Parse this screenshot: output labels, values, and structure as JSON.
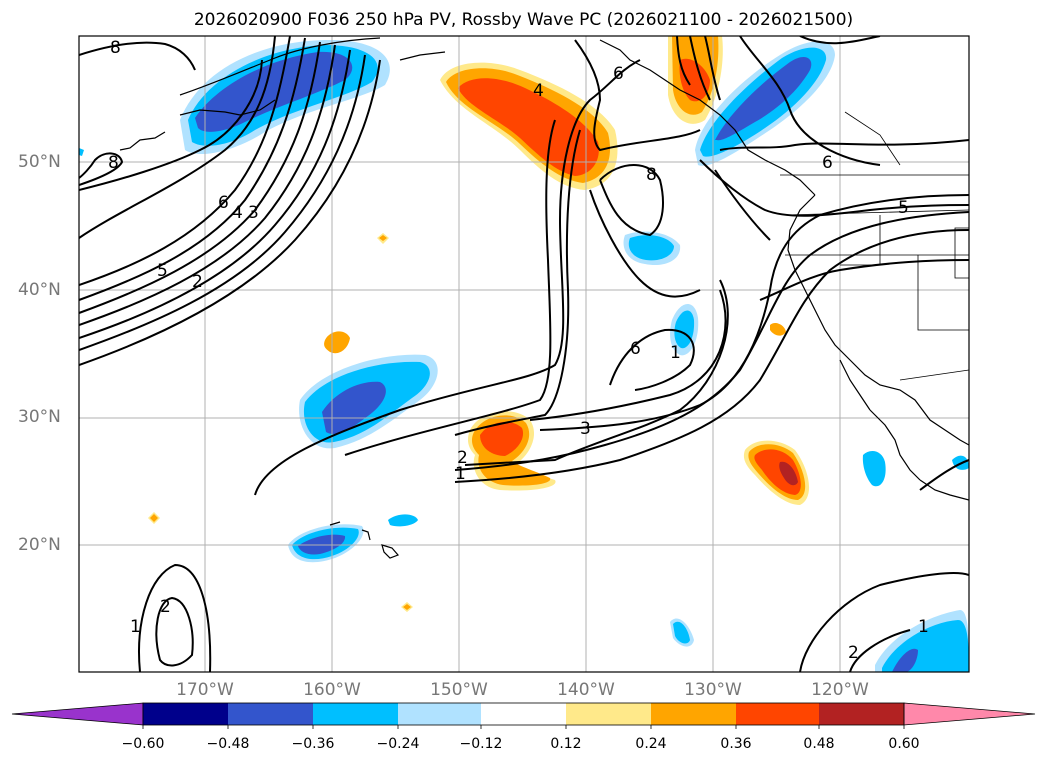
{
  "title": "2026020900 F036 250 hPa PV, Rossby Wave PC (2026021100 - 2026021500)",
  "lat_labels": [
    "50°N",
    "40°N",
    "30°N",
    "20°N"
  ],
  "lon_labels": [
    "170°W",
    "160°W",
    "150°W",
    "140°W",
    "130°W",
    "120°W"
  ],
  "colorbar": {
    "ticks": [
      "−0.60",
      "−0.48",
      "−0.36",
      "−0.24",
      "−0.12",
      "0.12",
      "0.24",
      "0.36",
      "0.48",
      "0.60"
    ],
    "colors": [
      "#9933cc",
      "#00008b",
      "#3355cc",
      "#00bfff",
      "#b0e2ff",
      "#ffffff",
      "#ffe98a",
      "#ffa500",
      "#ff4500",
      "#b22222",
      "#ff88aa"
    ]
  },
  "contour_labels": [
    "8",
    "8",
    "6",
    "4",
    "3",
    "5",
    "2",
    "6",
    "8",
    "6",
    "5",
    "2",
    "1",
    "3",
    "6",
    "1",
    "2",
    "1",
    "2",
    "1",
    "4"
  ],
  "colors": {
    "positive_mid": "#ff4500",
    "positive_low": "#ffa500",
    "positive_faint": "#ffe98a",
    "negative_mid": "#3355cc",
    "negative_low": "#00bfff",
    "negative_faint": "#b0e2ff"
  }
}
